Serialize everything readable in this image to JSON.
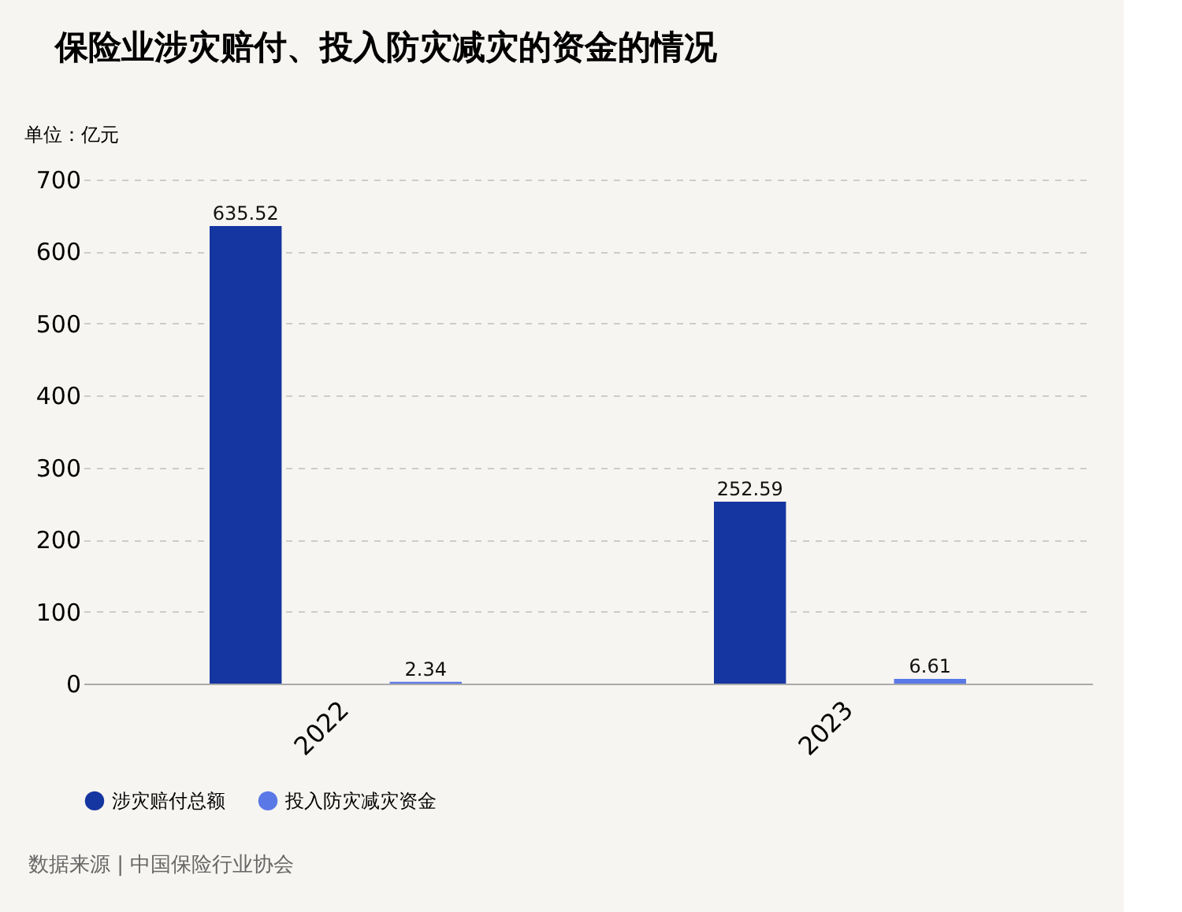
{
  "chart_data": {
    "type": "bar",
    "title": "保险业涉灾赔付、投入防灾减灾的资金的情况",
    "ylabel": "单位：亿元",
    "categories": [
      "2022",
      "2023"
    ],
    "series": [
      {
        "name": "涉灾赔付总额",
        "color": "#1535a0",
        "values": [
          635.52,
          252.59
        ]
      },
      {
        "name": "投入防灾减灾资金",
        "color": "#5a78e6",
        "values": [
          2.34,
          6.61
        ]
      }
    ],
    "ylim": [
      0,
      700
    ],
    "yticks": [
      0,
      100,
      200,
      300,
      400,
      500,
      600,
      700
    ],
    "grid": "y",
    "legend": "bottom",
    "data_labels": true,
    "annotations": [
      "数据来源 | 中国保险行业协会"
    ]
  }
}
